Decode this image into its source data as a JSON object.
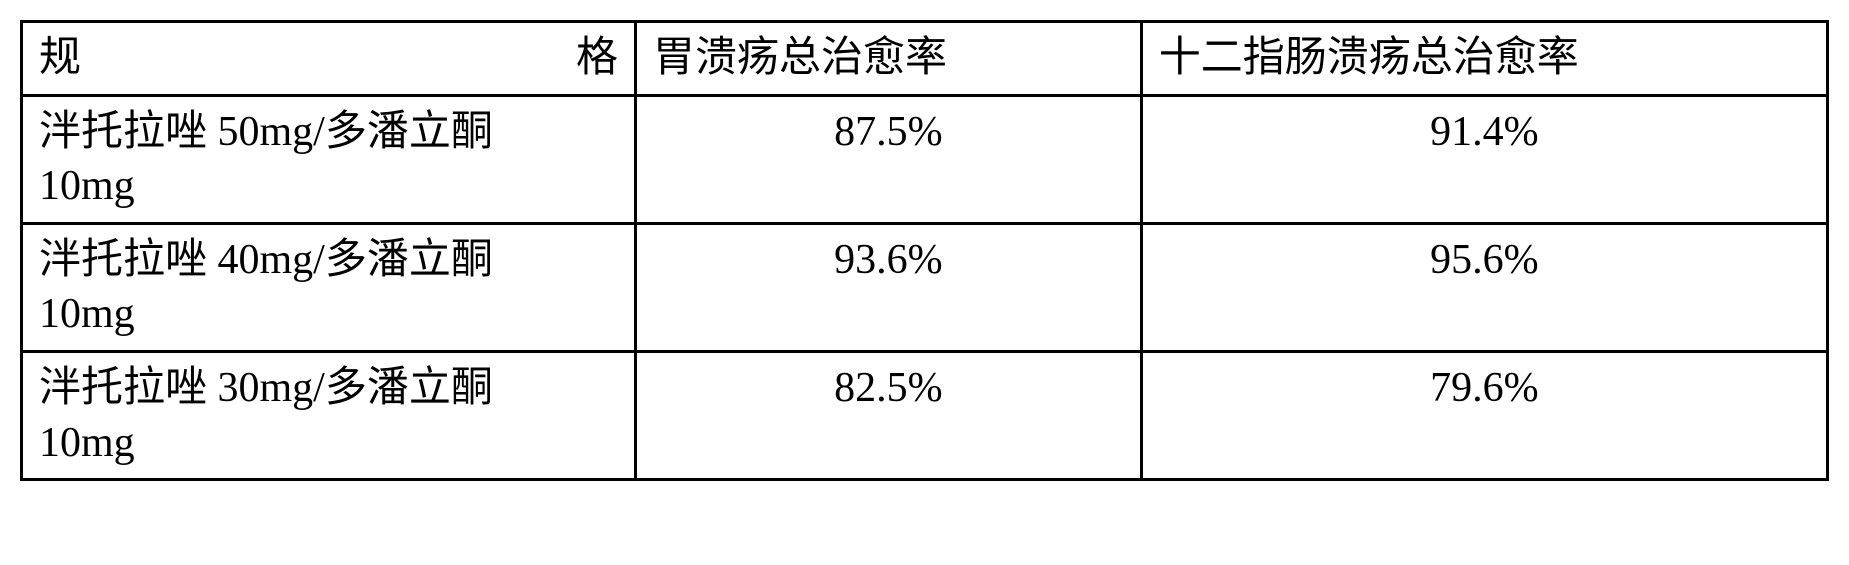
{
  "table": {
    "type": "table",
    "border_color": "#000000",
    "border_width": 3,
    "background_color": "#ffffff",
    "text_color": "#000000",
    "font_family": "SimSun",
    "header_fontsize": 42,
    "cell_fontsize": 42,
    "columns": [
      {
        "label_char1": "规",
        "label_char2": "格",
        "width_percent": 34,
        "align": "left"
      },
      {
        "label": "胃溃疡总治愈率",
        "width_percent": 28,
        "align": "left"
      },
      {
        "label": "十二指肠溃疡总治愈率",
        "width_percent": 38,
        "align": "left"
      }
    ],
    "rows": [
      {
        "spec_line1": "泮托拉唑 50mg/多潘立酮",
        "spec_line2": "10mg",
        "gastric": "87.5%",
        "duodenal": "91.4%"
      },
      {
        "spec_line1": "泮托拉唑 40mg/多潘立酮",
        "spec_line2": "10mg",
        "gastric": "93.6%",
        "duodenal": "95.6%"
      },
      {
        "spec_line1": "泮托拉唑 30mg/多潘立酮",
        "spec_line2": "10mg",
        "gastric": "82.5%",
        "duodenal": "79.6%"
      }
    ]
  }
}
